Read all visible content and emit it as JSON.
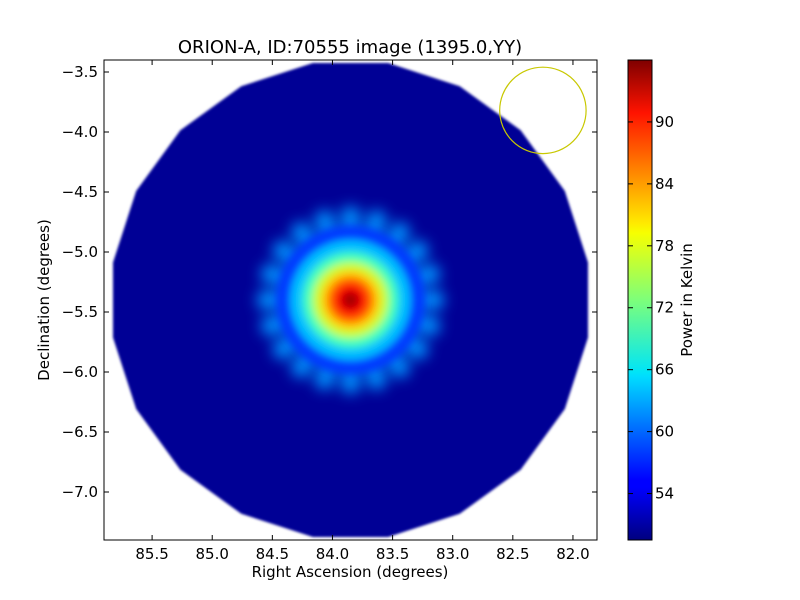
{
  "chart_data": {
    "type": "heatmap",
    "title": "ORION-A, ID:70555 image (1395.0,YY)",
    "xlabel": "Right Ascension (degrees)",
    "ylabel": "Declination (degrees)",
    "xlim": [
      85.9,
      81.8
    ],
    "ylim": [
      -7.4,
      -3.4
    ],
    "x_ticks": [
      85.5,
      85.0,
      84.5,
      84.0,
      83.5,
      83.0,
      82.5,
      82.0
    ],
    "x_tick_labels": [
      "85.5",
      "85.0",
      "84.5",
      "84.0",
      "83.5",
      "83.0",
      "82.5",
      "82.0"
    ],
    "y_ticks": [
      -3.5,
      -4.0,
      -4.5,
      -5.0,
      -5.5,
      -6.0,
      -6.5,
      -7.0
    ],
    "y_tick_labels": [
      "−3.5",
      "−4.0",
      "−4.5",
      "−5.0",
      "−5.5",
      "−6.0",
      "−6.5",
      "−7.0"
    ],
    "colorbar": {
      "label": "Power in Kelvin",
      "range": [
        49.5,
        96.0
      ],
      "ticks": [
        54,
        60,
        66,
        72,
        78,
        84,
        90
      ],
      "tick_labels": [
        "54",
        "60",
        "66",
        "72",
        "78",
        "84",
        "90"
      ],
      "colormap": "jet"
    },
    "map": {
      "center": [
        83.85,
        -5.4
      ],
      "radius_deg": 2.0,
      "n_sides": 20,
      "background_level": 50.5,
      "source_peak": 94.5,
      "source_core_radius_deg": 0.2,
      "spokes": 20,
      "spoke_extent_deg": 0.75
    },
    "beam_circle": {
      "center": [
        82.25,
        -3.82
      ],
      "radius_deg": 0.36,
      "color": "#c8c800"
    }
  }
}
